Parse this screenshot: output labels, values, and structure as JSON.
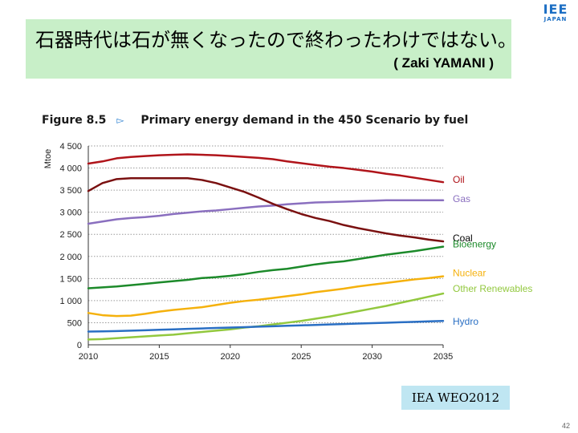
{
  "logo": {
    "main": "IEE",
    "sub": "JAPAN"
  },
  "banner": {
    "title": "石器時代は石が無くなったので終わったわけではない。",
    "attribution": "( Zaki YAMANI )"
  },
  "figure": {
    "number": "Figure 8.5",
    "arrow": "▻",
    "title": "Primary energy demand in the 450 Scenario by fuel"
  },
  "source": "IEA WEO2012",
  "page_number": "42",
  "colors": {
    "banner_bg": "#c8efc8",
    "source_bg": "#bfe6f2",
    "logo": "#1d6fc4"
  },
  "chart_data": {
    "type": "line",
    "ylabel": "Mtoe",
    "xlabel": "",
    "xlim": [
      2010,
      2035
    ],
    "ylim": [
      0,
      4500
    ],
    "grid": "horizontal dotted",
    "x_ticks": [
      "2010",
      "2015",
      "2020",
      "2025",
      "2030",
      "2035"
    ],
    "y_ticks": [
      "0",
      "500",
      "1 000",
      "1 500",
      "2 000",
      "2 500",
      "3 000",
      "3 500",
      "4 000",
      "4 500"
    ],
    "legend": "right, labels at line ends",
    "x": [
      2010,
      2011,
      2012,
      2013,
      2014,
      2015,
      2016,
      2017,
      2018,
      2019,
      2020,
      2021,
      2022,
      2023,
      2024,
      2025,
      2026,
      2027,
      2028,
      2029,
      2030,
      2031,
      2032,
      2033,
      2034,
      2035
    ],
    "series": [
      {
        "name": "Oil",
        "color": "#b0141a",
        "values": [
          4100,
          4150,
          4220,
          4250,
          4270,
          4290,
          4300,
          4310,
          4300,
          4290,
          4270,
          4250,
          4230,
          4200,
          4150,
          4110,
          4070,
          4030,
          4000,
          3960,
          3920,
          3870,
          3830,
          3780,
          3730,
          3680
        ]
      },
      {
        "name": "Gas",
        "color": "#8a6fbf",
        "values": [
          2740,
          2790,
          2840,
          2870,
          2890,
          2920,
          2960,
          2990,
          3020,
          3040,
          3070,
          3100,
          3130,
          3150,
          3180,
          3200,
          3220,
          3230,
          3240,
          3250,
          3260,
          3270,
          3270,
          3270,
          3270,
          3270
        ]
      },
      {
        "name": "Coal",
        "color": "#7a1010",
        "values": [
          3480,
          3660,
          3750,
          3770,
          3770,
          3770,
          3770,
          3770,
          3730,
          3660,
          3560,
          3460,
          3330,
          3190,
          3070,
          2960,
          2870,
          2800,
          2710,
          2640,
          2580,
          2520,
          2470,
          2430,
          2380,
          2340
        ]
      },
      {
        "name": "Bioenergy",
        "color": "#1c8a2a",
        "values": [
          1280,
          1300,
          1320,
          1350,
          1380,
          1410,
          1440,
          1470,
          1510,
          1530,
          1560,
          1600,
          1650,
          1690,
          1720,
          1770,
          1820,
          1860,
          1890,
          1940,
          1990,
          2040,
          2080,
          2120,
          2170,
          2220
        ]
      },
      {
        "name": "Nuclear",
        "color": "#f5b10c",
        "values": [
          720,
          670,
          650,
          660,
          700,
          750,
          790,
          820,
          850,
          900,
          950,
          990,
          1020,
          1060,
          1100,
          1140,
          1190,
          1230,
          1270,
          1320,
          1360,
          1400,
          1440,
          1480,
          1510,
          1550
        ]
      },
      {
        "name": "Other Renewables",
        "color": "#92c83e",
        "values": [
          120,
          130,
          150,
          170,
          190,
          210,
          230,
          260,
          290,
          320,
          350,
          390,
          420,
          460,
          500,
          540,
          590,
          640,
          700,
          760,
          820,
          880,
          950,
          1020,
          1090,
          1160
        ]
      },
      {
        "name": "Hydro",
        "color": "#2a6fc4",
        "values": [
          300,
          305,
          310,
          320,
          330,
          340,
          350,
          360,
          370,
          380,
          390,
          400,
          410,
          420,
          430,
          440,
          450,
          460,
          470,
          480,
          490,
          500,
          510,
          520,
          530,
          540
        ]
      }
    ]
  }
}
